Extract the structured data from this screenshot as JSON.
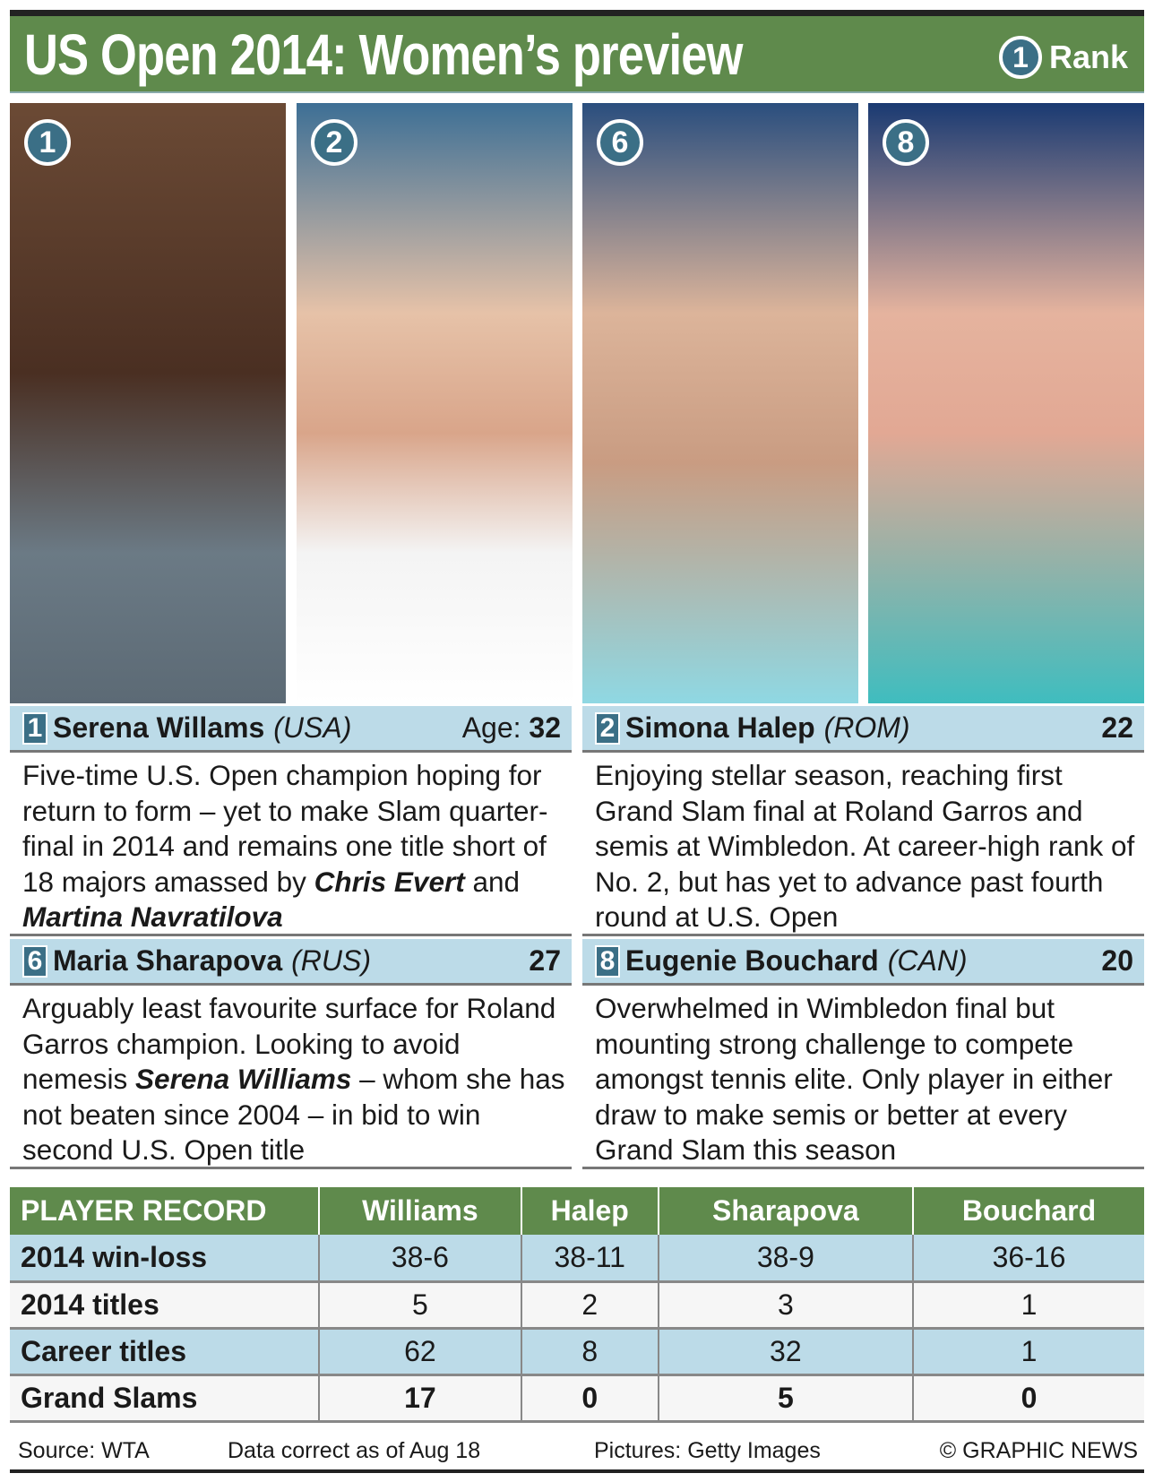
{
  "header": {
    "title": "US Open 2014: Women’s preview",
    "legend_rank_number": "1",
    "legend_label": "Rank"
  },
  "colors": {
    "green": "#5f8a4c",
    "badge_blue": "#3b6f86",
    "bar_blue": "#bcdbe8"
  },
  "players": [
    {
      "rank": "1",
      "name": "Serena Willams",
      "country": "(USA)",
      "age_label": "Age:",
      "age": "32",
      "photo": "serena-williams-photo",
      "desc": [
        {
          "t": "Five-time U.S. Open champion hoping for return to form – yet to make Slam quarter-final in 2014 and remains one title short of 18 majors amassed by "
        },
        {
          "t": "Chris Evert",
          "em": true
        },
        {
          "t": " and "
        },
        {
          "t": "Martina Navratilova",
          "em": true
        }
      ]
    },
    {
      "rank": "2",
      "name": "Simona Halep",
      "country": "(ROM)",
      "age_label": "",
      "age": "22",
      "photo": "simona-halep-photo",
      "desc": [
        {
          "t": "Enjoying stellar season, reaching first Grand Slam final at Roland Garros and semis at Wimbledon. At career-high rank of No. 2, but has yet to advance past fourth round at U.S. Open"
        }
      ]
    },
    {
      "rank": "6",
      "name": "Maria Sharapova",
      "country": "(RUS)",
      "age_label": "",
      "age": "27",
      "photo": "maria-sharapova-photo",
      "desc": [
        {
          "t": "Arguably least favourite surface for Roland Garros champion. Looking to avoid nemesis "
        },
        {
          "t": "Serena Williams",
          "em": true
        },
        {
          "t": " – whom she has not beaten since 2004 – in bid to win second U.S. Open title"
        }
      ]
    },
    {
      "rank": "8",
      "name": "Eugenie Bouchard",
      "country": "(CAN)",
      "age_label": "",
      "age": "20",
      "photo": "eugenie-bouchard-photo",
      "desc": [
        {
          "t": "Overwhelmed in Wimbledon final but mounting strong challenge to compete amongst tennis elite. Only player in either draw to make semis or better at every Grand Slam this season"
        }
      ]
    }
  ],
  "table": {
    "headers": [
      "PLAYER RECORD",
      "Williams",
      "Halep",
      "Sharapova",
      "Bouchard"
    ],
    "rows": [
      [
        "2014 win-loss",
        "38-6",
        "38-11",
        "38-9",
        "36-16"
      ],
      [
        "2014 titles",
        "5",
        "2",
        "3",
        "1"
      ],
      [
        "Career titles",
        "62",
        "8",
        "32",
        "1"
      ],
      [
        "Grand Slams",
        "17",
        "0",
        "5",
        "0"
      ]
    ]
  },
  "footer": {
    "source": "Source: WTA",
    "data_note": "Data correct as of Aug 18",
    "pictures": "Pictures: Getty Images",
    "copyright": "© GRAPHIC NEWS"
  }
}
